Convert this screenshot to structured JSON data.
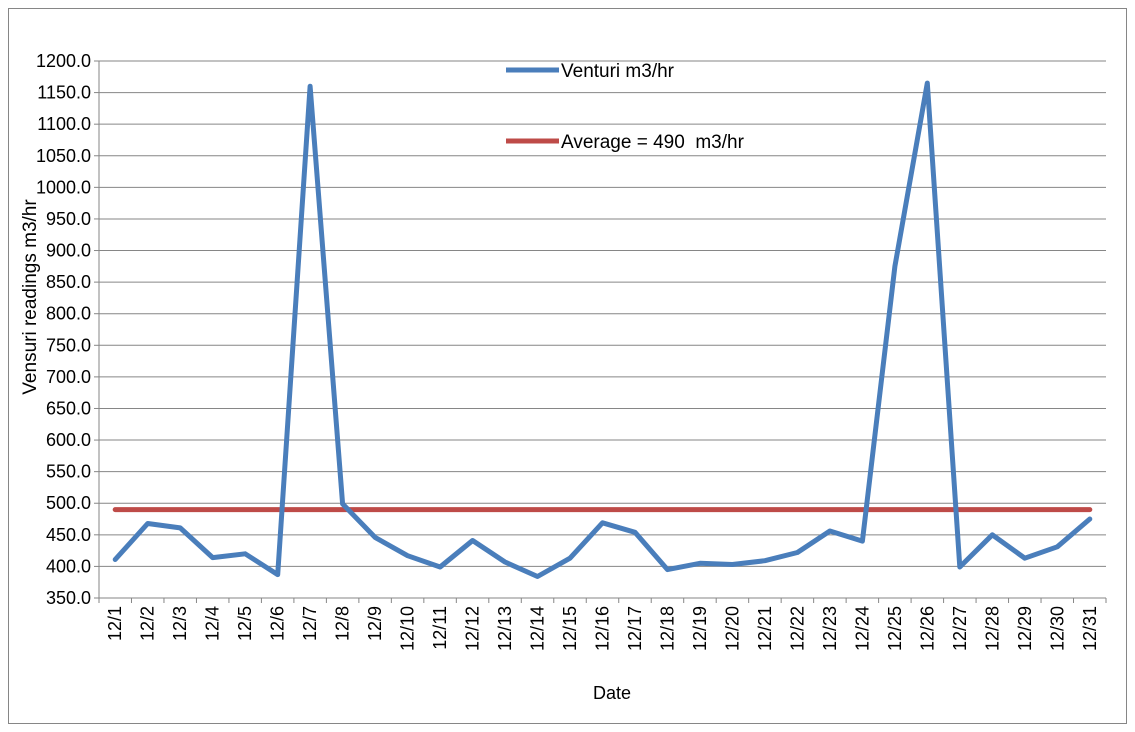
{
  "chart_data": {
    "type": "line",
    "title": "",
    "xlabel": "Date",
    "ylabel": "Vensuri readings m3/hr",
    "categories": [
      "12/1",
      "12/2",
      "12/3",
      "12/4",
      "12/5",
      "12/6",
      "12/7",
      "12/8",
      "12/9",
      "12/10",
      "12/11",
      "12/12",
      "12/13",
      "12/14",
      "12/15",
      "12/16",
      "12/17",
      "12/18",
      "12/19",
      "12/20",
      "12/21",
      "12/22",
      "12/23",
      "12/24",
      "12/25",
      "12/26",
      "12/27",
      "12/28",
      "12/29",
      "12/30",
      "12/31"
    ],
    "ylim": [
      350,
      1200
    ],
    "ytick_step": 50,
    "ytick_labels": [
      "350.0",
      "400.0",
      "450.0",
      "500.0",
      "550.0",
      "600.0",
      "650.0",
      "700.0",
      "750.0",
      "800.0",
      "850.0",
      "900.0",
      "950.0",
      "1000.0",
      "1050.0",
      "1100.0",
      "1150.0",
      "1200.0"
    ],
    "grid": "horizontal",
    "series": [
      {
        "name": "Venturi m3/hr",
        "color": "#4a7ebb",
        "values": [
          411,
          468,
          461,
          414,
          420,
          387,
          1160,
          499,
          446,
          417,
          399,
          441,
          407,
          384,
          413,
          469,
          454,
          395,
          405,
          403,
          409,
          422,
          456,
          440,
          875,
          1165,
          399,
          450,
          413,
          431,
          475
        ]
      },
      {
        "name": "Average = 490  m3/hr",
        "color": "#be4b48",
        "values": [
          490,
          490,
          490,
          490,
          490,
          490,
          490,
          490,
          490,
          490,
          490,
          490,
          490,
          490,
          490,
          490,
          490,
          490,
          490,
          490,
          490,
          490,
          490,
          490,
          490,
          490,
          490,
          490,
          490,
          490,
          490
        ]
      }
    ],
    "legend": [
      "Venturi m3/hr",
      "Average = 490  m3/hr"
    ]
  }
}
